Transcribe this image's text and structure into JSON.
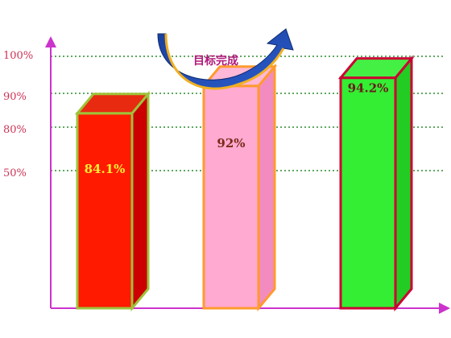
{
  "chart_data": {
    "type": "bar",
    "values": [
      84.1,
      92,
      94.2
    ],
    "value_labels": [
      "84.1%",
      "92%",
      "94.2%"
    ],
    "y_ticks": [
      "100%",
      "90%",
      "80%",
      "50%"
    ],
    "annotation": "目标完成",
    "grid": "dotted-horizontal",
    "colors": {
      "axis": "#cc33cc",
      "grid": "#2e8b2e",
      "bar1_front": "#ff1a00",
      "bar1_side": "#cc0000",
      "bar1_top": "#e82a10",
      "bar1_edge": "#9fc23a",
      "bar2_front": "#ffaad0",
      "bar2_side": "#f28cc0",
      "bar2_top": "#ffb8d8",
      "bar2_edge": "#ff9a2e",
      "bar3_front": "#33ee33",
      "bar3_side": "#22cc22",
      "bar3_top": "#44f044",
      "bar3_edge": "#cc0033",
      "label1": "#ffee33",
      "label2": "#7a2a1a",
      "label3": "#6a1a1a",
      "arrow_blue": "#1b3f9a",
      "arrow_gold": "#f0b020"
    }
  }
}
